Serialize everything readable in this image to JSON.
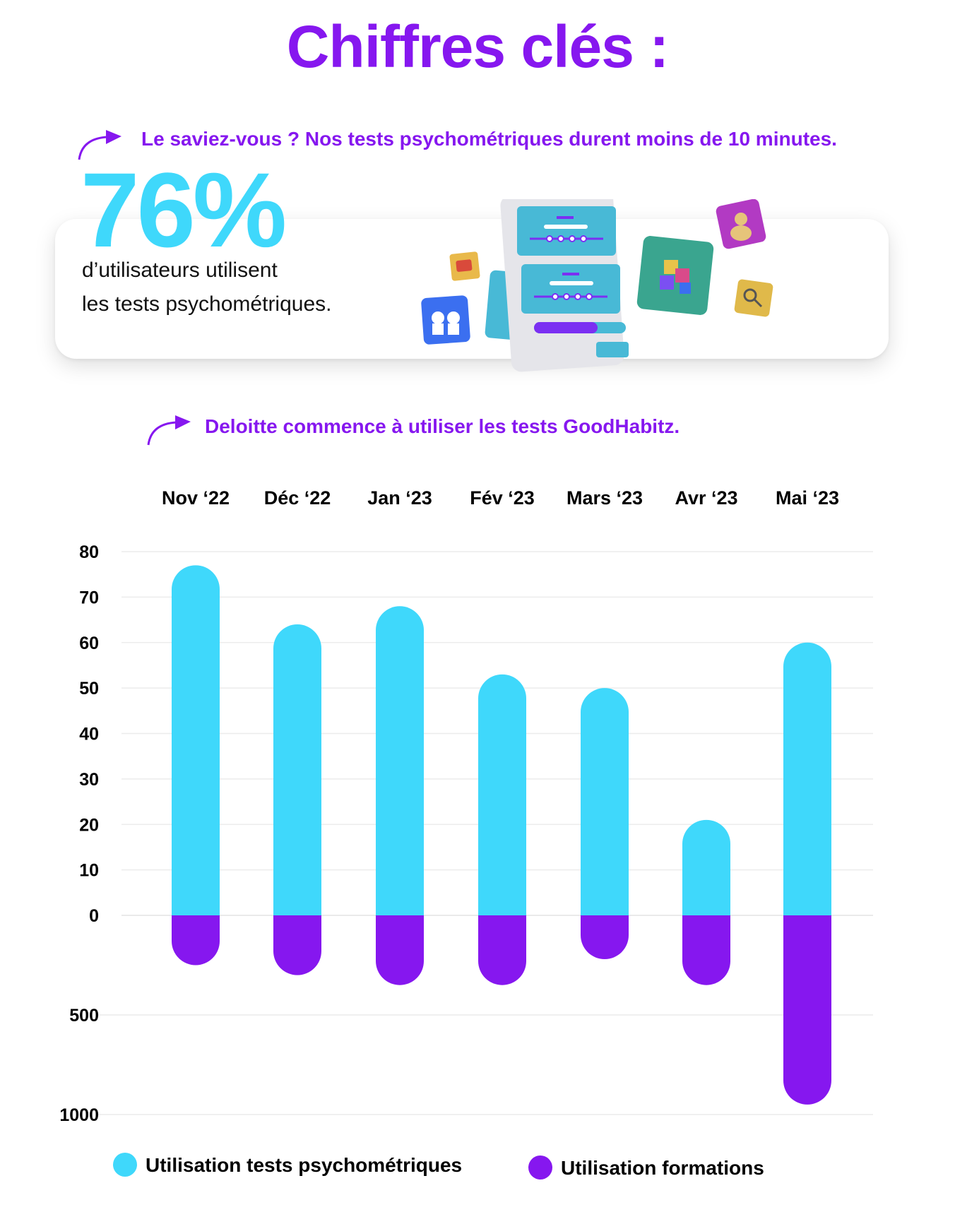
{
  "title": "Chiffres clés :",
  "note1": "Le saviez-vous ? Nos tests psychométriques durent moins de 10 minutes.",
  "stat": {
    "value": "76%",
    "line1": "d’utilisateurs utilisent",
    "line2": "les tests psychométriques."
  },
  "note2": "Deloitte commence à utiliser les tests GoodHabitz.",
  "colors": {
    "accent": "#8617ef",
    "cyan": "#3fd8fb",
    "purple": "#8617ef"
  },
  "legend": {
    "series1": "Utilisation tests psychométriques",
    "series2": "Utilisation formations"
  },
  "chart_data": {
    "type": "bar",
    "categories": [
      "Nov ‘22",
      "Déc ‘22",
      "Jan ‘23",
      "Fév ‘23",
      "Mars ‘23",
      "Avr ‘23",
      "Mai ‘23"
    ],
    "series": [
      {
        "name": "Utilisation tests psychométriques",
        "color": "#3fd8fb",
        "values": [
          77,
          64,
          68,
          53,
          50,
          21,
          60
        ]
      },
      {
        "name": "Utilisation formations",
        "color": "#8617ef",
        "values": [
          250,
          300,
          350,
          350,
          220,
          350,
          950
        ]
      }
    ],
    "upper_axis": {
      "ylim": [
        0,
        80
      ],
      "ticks": [
        "80",
        "70",
        "60",
        "50",
        "40",
        "30",
        "20",
        "10",
        "0"
      ]
    },
    "lower_axis": {
      "ylim": [
        0,
        1000
      ],
      "ticks": [
        "500",
        "1000"
      ]
    },
    "grid": true,
    "legend_position": "bottom"
  }
}
